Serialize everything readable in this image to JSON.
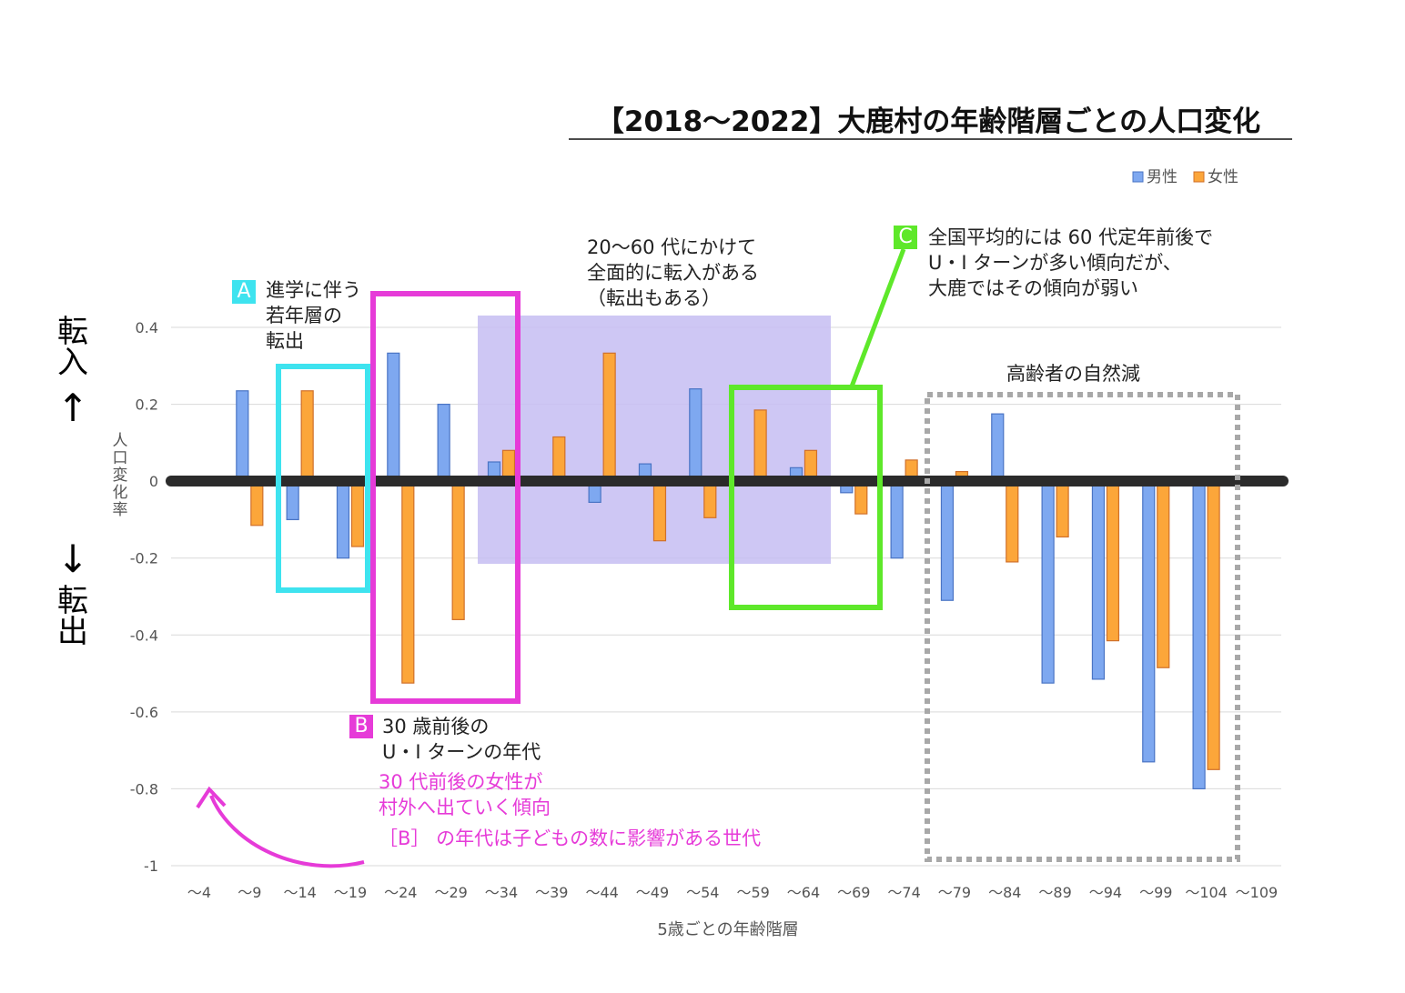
{
  "chart_data": {
    "type": "bar",
    "title": "【2018～2022】大鹿村の年齢階層ごとの人口変化",
    "xlabel": "5歳ごとの年齢階層",
    "ylabel": "人口変化率",
    "ylim": [
      -1,
      0.4
    ],
    "yticks": [
      "0.4",
      "0.2",
      "0",
      "-0.2",
      "-0.4",
      "-0.6",
      "-0.8",
      "-1"
    ],
    "grid": true,
    "legend_position": "top-right",
    "categories": [
      "～4",
      "～9",
      "～14",
      "～19",
      "～24",
      "～29",
      "～34",
      "～39",
      "～44",
      "～49",
      "～54",
      "～59",
      "～64",
      "～69",
      "～74",
      "～79",
      "～84",
      "～89",
      "～94",
      "～99",
      "～104",
      "～109"
    ],
    "series": [
      {
        "name": "男性",
        "color": "#7ea8f0",
        "values": [
          null,
          0.235,
          -0.1,
          -0.2,
          0.333,
          0.2,
          0.05,
          null,
          -0.055,
          0.045,
          0.24,
          null,
          0.035,
          -0.03,
          -0.2,
          -0.31,
          0.175,
          -0.525,
          -0.515,
          -0.73,
          -0.8,
          null
        ]
      },
      {
        "name": "女性",
        "color": "#fca63a",
        "values": [
          null,
          -0.115,
          0.235,
          -0.17,
          -0.525,
          -0.36,
          0.08,
          0.115,
          0.333,
          -0.155,
          -0.095,
          0.185,
          0.08,
          -0.085,
          0.055,
          0.025,
          -0.21,
          -0.145,
          -0.415,
          -0.485,
          -0.75,
          null
        ]
      }
    ]
  },
  "side_labels": {
    "in_top": "転",
    "in_bottom": "入",
    "out_top": "転",
    "out_bottom": "出",
    "up_arrow": "↑",
    "down_arrow": "↓"
  },
  "annotations": {
    "a": {
      "tag": "A",
      "line1": "進学に伴う",
      "line2": "若年層の",
      "line3": "転出"
    },
    "b": {
      "tag": "B",
      "line1": "30 歳前後の",
      "line2": "U・I ターンの年代"
    },
    "b_note": {
      "line1": "30 代前後の女性が",
      "line2": "村外へ出ていく傾向",
      "line3": "［B］ の年代は子どもの数に影響がある世代"
    },
    "mid": {
      "line1": "20～60 代にかけて",
      "line2": "全面的に転入がある",
      "line3": "（転出もある）"
    },
    "c": {
      "tag": "C",
      "line1": "全国平均的には 60 代定年前後で",
      "line2": "U・I ターンが多い傾向だが、",
      "line3": "大鹿ではその傾向が弱い"
    },
    "elder": {
      "text": "高齢者の自然減"
    }
  },
  "colors": {
    "accent_a": "#3ee3ef",
    "accent_b": "#e63bd8",
    "accent_c": "#5ee82a",
    "shade": "#c6bdf2",
    "dashed": "#a8a8a8",
    "zero_line": "#2b2b2b"
  }
}
